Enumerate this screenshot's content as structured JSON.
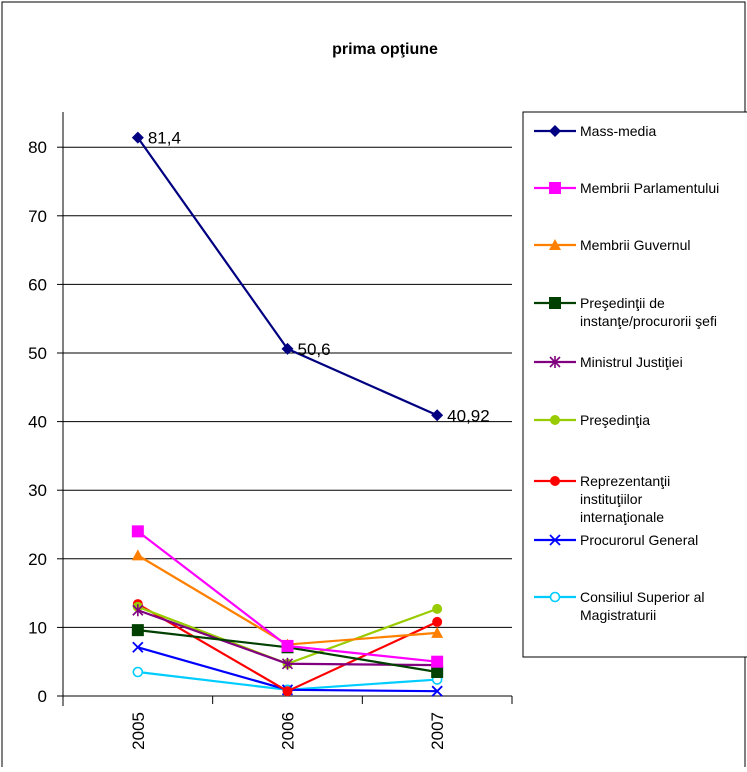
{
  "chart_data": {
    "type": "line",
    "title": "prima opţiune",
    "categories": [
      "2005",
      "2006",
      "2007"
    ],
    "ylim": [
      0,
      80
    ],
    "yticks": [
      0,
      10,
      20,
      30,
      40,
      50,
      60,
      70,
      80
    ],
    "grid": true,
    "legend_position": "right",
    "series": [
      {
        "name": "Mass-media",
        "values": [
          81.4,
          50.6,
          40.92
        ],
        "color": "#000080",
        "marker": "diamond",
        "data_labels": [
          "81,4",
          "50,6",
          "40,92"
        ]
      },
      {
        "name": "Membrii Parlamentului",
        "values": [
          24.0,
          7.3,
          5.0
        ],
        "color": "#ff00ff",
        "marker": "square"
      },
      {
        "name": "Membrii Guvernul",
        "values": [
          20.5,
          7.5,
          9.2
        ],
        "color": "#ff8000",
        "marker": "triangle"
      },
      {
        "name": "Preşedinţii de instanţe/procurorii şefi",
        "values": [
          9.6,
          7.1,
          3.5
        ],
        "color": "#004000",
        "marker": "square"
      },
      {
        "name": "Ministrul Justiţiei",
        "values": [
          12.5,
          4.7,
          4.5
        ],
        "color": "#800080",
        "marker": "asterisk"
      },
      {
        "name": "Preşedinţia",
        "values": [
          13.0,
          4.7,
          12.7
        ],
        "color": "#99cc00",
        "marker": "circle"
      },
      {
        "name": "Reprezentanţii instituţiilor internaţionale",
        "values": [
          13.4,
          0.7,
          10.8
        ],
        "color": "#ff0000",
        "marker": "circle"
      },
      {
        "name": "Procurorul General",
        "values": [
          7.1,
          0.9,
          0.7
        ],
        "color": "#0000ff",
        "marker": "x"
      },
      {
        "name": "Consiliul Superior al Magistraturii",
        "values": [
          3.5,
          0.9,
          2.4
        ],
        "color": "#00ccff",
        "marker": "open-circle"
      }
    ]
  },
  "legend": {
    "items": [
      {
        "lines": [
          "Mass-media"
        ]
      },
      {
        "lines": [
          "Membrii Parlamentului"
        ]
      },
      {
        "lines": [
          "Membrii Guvernul"
        ]
      },
      {
        "lines": [
          "Preşedinţii de",
          "instanţe/procurorii şefi"
        ]
      },
      {
        "lines": [
          "Ministrul Justiţiei"
        ]
      },
      {
        "lines": [
          "Preşedinţia"
        ]
      },
      {
        "lines": [
          "Reprezentanţii",
          "instituţiilor",
          "internaţionale"
        ]
      },
      {
        "lines": [
          "Procurorul General"
        ]
      },
      {
        "lines": [
          "Consiliul Superior al",
          "Magistraturii"
        ]
      }
    ]
  }
}
